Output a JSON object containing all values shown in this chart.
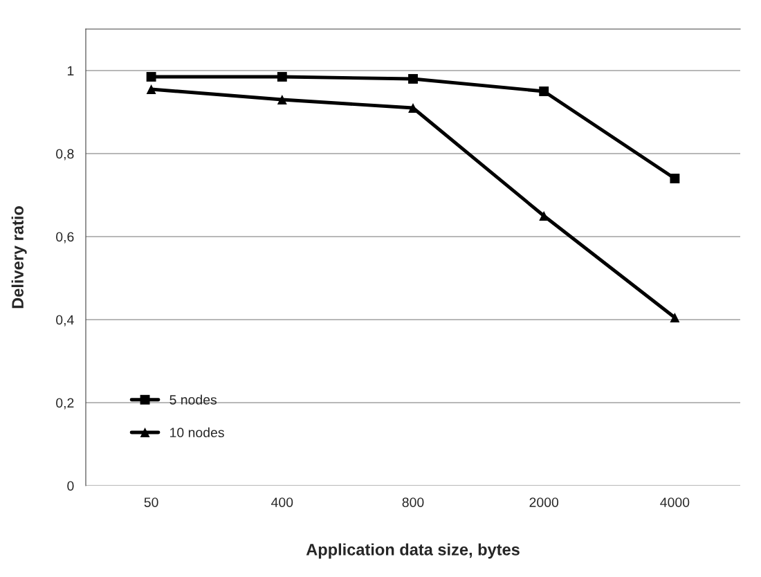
{
  "chart_data": {
    "type": "line",
    "xlabel": "Application data size, bytes",
    "ylabel": "Delivery ratio",
    "categories": [
      "50",
      "400",
      "800",
      "2000",
      "4000"
    ],
    "series": [
      {
        "name": "5 nodes",
        "color": "#000000",
        "marker": "square",
        "values": [
          0.985,
          0.985,
          0.98,
          0.95,
          0.74
        ]
      },
      {
        "name": "10 nodes",
        "color": "#000000",
        "marker": "triangle",
        "values": [
          0.955,
          0.93,
          0.91,
          0.65,
          0.405
        ]
      }
    ],
    "ylim": [
      0,
      1.1
    ],
    "yticks": [
      0,
      {
        "value": 0.2,
        "label": "0,2"
      },
      {
        "value": 0.4,
        "label": "0,4"
      },
      {
        "value": 0.6,
        "label": "0,6"
      },
      {
        "value": 0.8,
        "label": "0,8"
      },
      1
    ],
    "grid": "y",
    "legend": "bottom left",
    "line_style": "solid"
  }
}
